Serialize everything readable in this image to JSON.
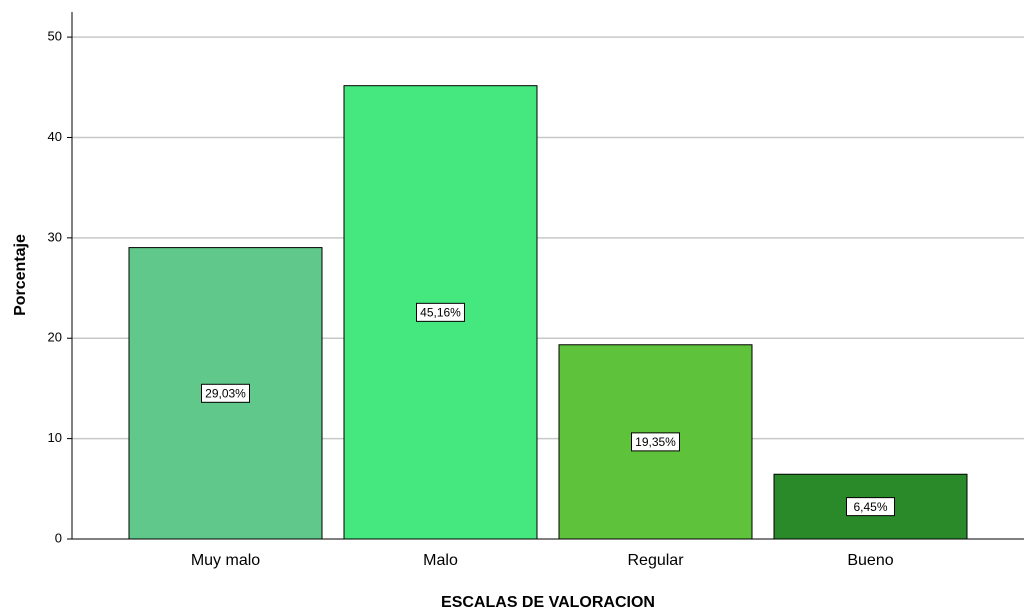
{
  "chart_data": {
    "type": "bar",
    "xlabel": "ESCALAS DE VALORACION",
    "ylabel": "Porcentaje",
    "categories": [
      "Muy malo",
      "Malo",
      "Regular",
      "Bueno"
    ],
    "values": [
      29.03,
      45.16,
      19.35,
      6.45
    ],
    "value_labels": [
      "29,03%",
      "45,16%",
      "19,35%",
      "6,45%"
    ],
    "colors": [
      "#5fc88a",
      "#45e87e",
      "#5ec23a",
      "#2a8a2a"
    ],
    "ylim": [
      0,
      52.5
    ],
    "yticks": [
      0,
      10,
      20,
      30,
      40,
      50
    ],
    "grid": true
  }
}
